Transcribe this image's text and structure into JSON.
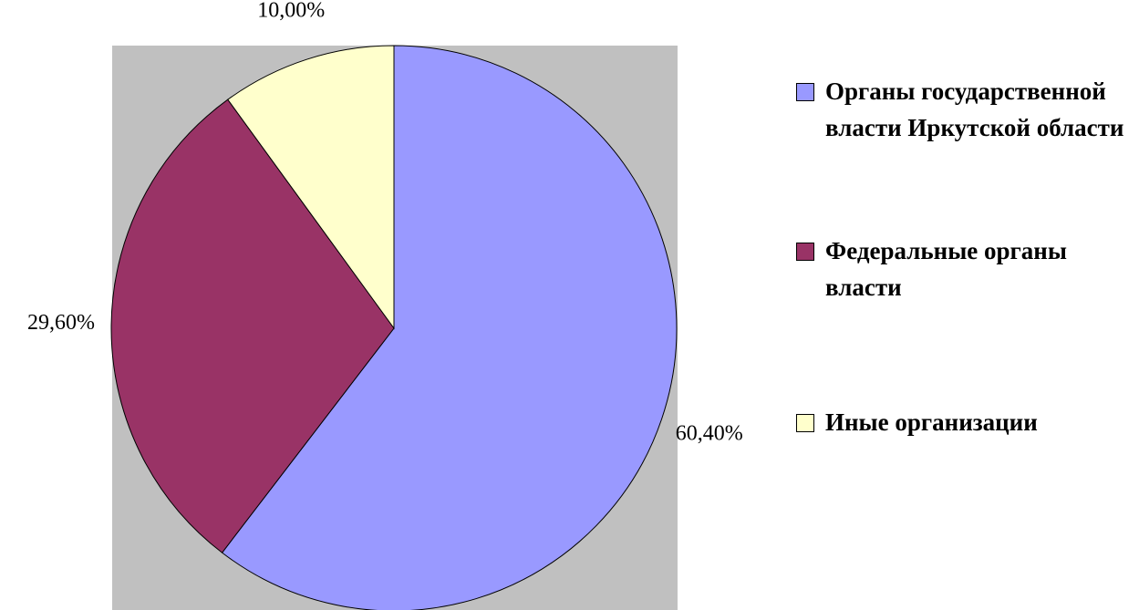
{
  "chart_data": {
    "type": "pie",
    "categories": [
      "Органы государственной власти Иркутской области",
      "Федеральные органы власти",
      "Иные организации"
    ],
    "values": [
      60.4,
      29.6,
      10.0
    ],
    "value_labels": [
      "60,40%",
      "29,60%",
      "10,00%"
    ],
    "colors": [
      "#9999ff",
      "#993366",
      "#ffffcc"
    ],
    "legend": "right"
  }
}
